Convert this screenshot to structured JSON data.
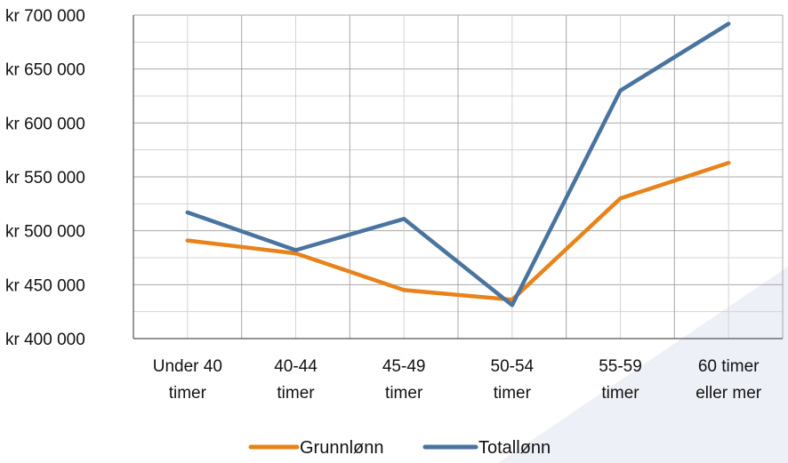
{
  "chart_data": {
    "type": "line",
    "title": "",
    "xlabel": "",
    "ylabel": "",
    "categories": [
      [
        "Under 40",
        "timer"
      ],
      [
        "40-44",
        "timer"
      ],
      [
        "45-49",
        "timer"
      ],
      [
        "50-54",
        "timer"
      ],
      [
        "55-59",
        "timer"
      ],
      [
        "60 timer",
        "eller mer"
      ]
    ],
    "y_ticks": [
      "kr 400 000",
      "kr 450 000",
      "kr 500 000",
      "kr 550 000",
      "kr 600 000",
      "kr 650 000",
      "kr 700 000"
    ],
    "ylim": [
      400000,
      700000
    ],
    "grid": true,
    "legend_position": "bottom",
    "series": [
      {
        "name": "Grunnlønn",
        "color": "#E8831A",
        "values": [
          491000,
          479000,
          445000,
          436000,
          530000,
          563000
        ]
      },
      {
        "name": "Totallønn",
        "color": "#4A74A0",
        "values": [
          517000,
          482000,
          511000,
          431000,
          630000,
          692000
        ]
      }
    ]
  }
}
